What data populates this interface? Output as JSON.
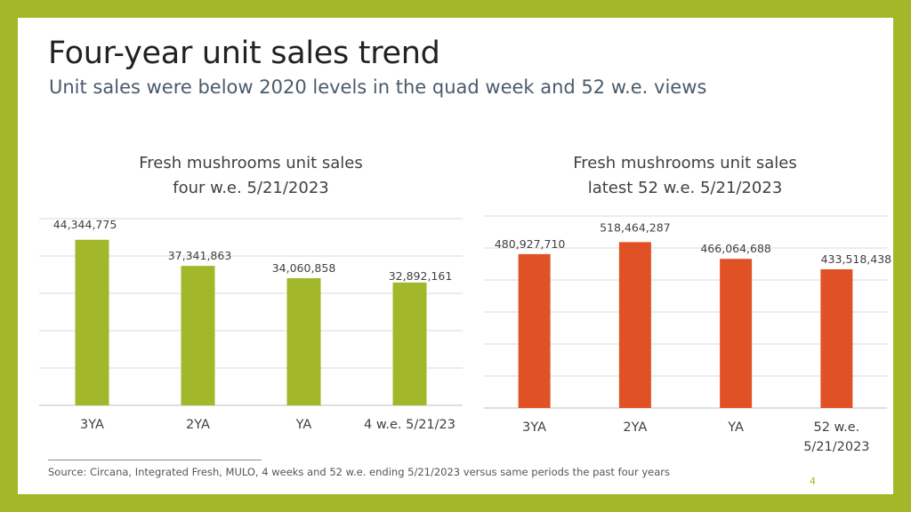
{
  "slide": {
    "title": "Four-year unit sales trend",
    "subtitle": "Unit sales were below 2020 levels in the quad week and 52 w.e. views",
    "footnote": "Source: Circana, Integrated Fresh, MULO, 4 weeks and 52 w.e. ending 5/21/2023 versus same periods the past four years",
    "page_number": "4"
  },
  "colors": {
    "frame": "#a2b72a",
    "left_bars": "#a2b72a",
    "right_bars": "#e05226",
    "gridline": "#d9d9d9"
  },
  "chart_data": [
    {
      "type": "bar",
      "title_lines": [
        "Fresh mushrooms unit sales",
        "four w.e. 5/21/2023"
      ],
      "categories": [
        "3YA",
        "2YA",
        "YA",
        "4 w.e. 5/21/23"
      ],
      "values": [
        44344775,
        37341863,
        34060858,
        32892161
      ],
      "value_labels": [
        "44,344,775",
        "37,341,863",
        "34,060,858",
        "32,892,161"
      ],
      "ylim": [
        0,
        50000000
      ],
      "gridlines": 5,
      "grid": true,
      "color": "#a2b72a"
    },
    {
      "type": "bar",
      "title_lines": [
        "Fresh mushrooms unit sales",
        "latest 52 w.e. 5/21/2023"
      ],
      "categories": [
        "3YA",
        "2YA",
        "YA",
        "52 w.e.\n5/21/2023"
      ],
      "values": [
        480927710,
        518464287,
        466064688,
        433518438
      ],
      "value_labels": [
        "480,927,710",
        "518,464,287",
        "466,064,688",
        "433,518,438"
      ],
      "ylim": [
        0,
        600000000
      ],
      "gridlines": 6,
      "grid": true,
      "color": "#e05226"
    }
  ]
}
